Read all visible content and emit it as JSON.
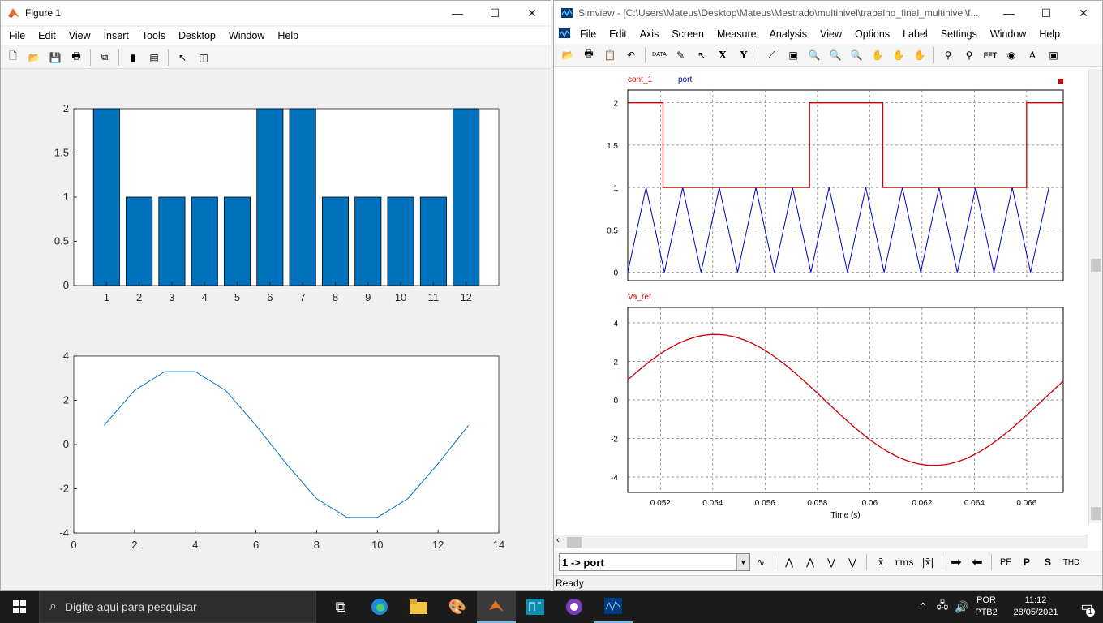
{
  "figure": {
    "title": "Figure 1",
    "menu": [
      "File",
      "Edit",
      "View",
      "Insert",
      "Tools",
      "Desktop",
      "Window",
      "Help"
    ],
    "bar_chart": {
      "categories": [
        "1",
        "2",
        "3",
        "4",
        "5",
        "6",
        "7",
        "8",
        "9",
        "10",
        "11",
        "12"
      ],
      "values": [
        2,
        1,
        1,
        1,
        1,
        2,
        2,
        1,
        1,
        1,
        1,
        2
      ],
      "yticks": [
        "0",
        "0.5",
        "1",
        "1.5",
        "2"
      ],
      "color": "#0072BD"
    },
    "line_chart": {
      "x": [
        1,
        2,
        3,
        4,
        5,
        6,
        7,
        8,
        9,
        10,
        11,
        12,
        13
      ],
      "y": [
        0.87,
        2.45,
        3.3,
        3.3,
        2.45,
        0.87,
        -0.87,
        -2.45,
        -3.3,
        -3.3,
        -2.45,
        -0.87,
        0.87
      ],
      "xticks": [
        "0",
        "2",
        "4",
        "6",
        "8",
        "10",
        "12",
        "14"
      ],
      "yticks": [
        "-4",
        "-2",
        "0",
        "2",
        "4"
      ],
      "color": "#0072BD"
    }
  },
  "simview": {
    "title": "Simview - [C:\\Users\\Mateus\\Desktop\\Mateus\\Mestrado\\multinivel\\trabalho_final_multinivel\\f...",
    "menu": [
      "File",
      "Edit",
      "Axis",
      "Screen",
      "Measure",
      "Analysis",
      "View",
      "Options",
      "Label",
      "Settings",
      "Window",
      "Help"
    ],
    "plot1": {
      "legend": [
        "cont_1",
        "port"
      ],
      "legend_colors": [
        "#cc0000",
        "#0000cc"
      ],
      "yticks": [
        "0",
        "0.5",
        "1",
        "1.5",
        "2"
      ]
    },
    "plot2": {
      "legend": [
        "Va_ref"
      ],
      "legend_colors": [
        "#cc0000"
      ],
      "yticks": [
        "-4",
        "-2",
        "0",
        "2",
        "4"
      ]
    },
    "xticks": [
      "0.052",
      "0.054",
      "0.056",
      "0.058",
      "0.06",
      "0.062",
      "0.064",
      "0.066"
    ],
    "xlabel": "Time (s)",
    "dropdown_value": "1 -> port",
    "bottom_tools": [
      "rms",
      "PF",
      "P",
      "S",
      "THD"
    ],
    "status": "Ready"
  },
  "taskbar": {
    "search_placeholder": "Digite aqui para pesquisar",
    "lang": "POR",
    "layout": "PTB2",
    "time": "11:12",
    "date": "28/05/2021",
    "notif_count": "1"
  },
  "chart_data": [
    {
      "type": "bar",
      "categories": [
        "1",
        "2",
        "3",
        "4",
        "5",
        "6",
        "7",
        "8",
        "9",
        "10",
        "11",
        "12"
      ],
      "values": [
        2,
        1,
        1,
        1,
        1,
        2,
        2,
        1,
        1,
        1,
        1,
        2
      ],
      "ylim": [
        0,
        2
      ]
    },
    {
      "type": "line",
      "x": [
        1,
        2,
        3,
        4,
        5,
        6,
        7,
        8,
        9,
        10,
        11,
        12,
        13
      ],
      "y": [
        0.87,
        2.45,
        3.3,
        3.3,
        2.45,
        0.87,
        -0.87,
        -2.45,
        -3.3,
        -3.3,
        -2.45,
        -0.87,
        0.87
      ],
      "xlim": [
        0,
        14
      ],
      "ylim": [
        -4,
        4
      ]
    }
  ]
}
